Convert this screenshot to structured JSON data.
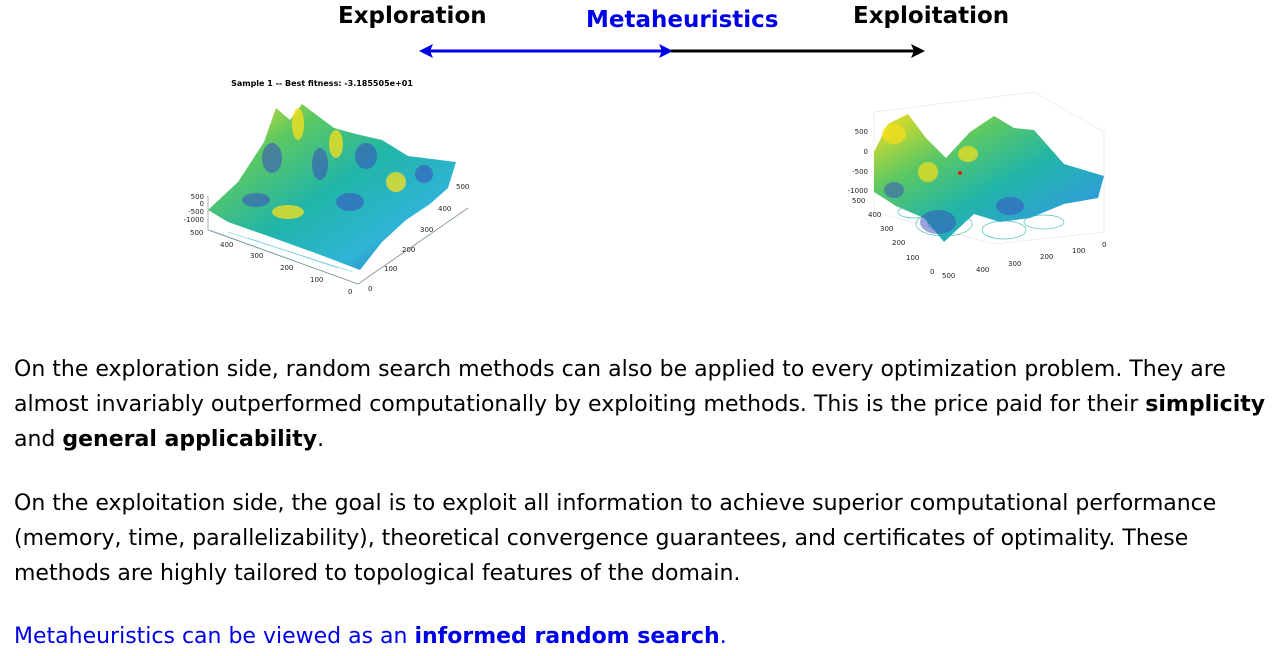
{
  "header": {
    "exploration_label": "Exploration",
    "metaheuristics_label": "Metaheuristics",
    "exploitation_label": "Exploitation"
  },
  "plot_left": {
    "title": "Sample 1 -- Best fitness: -3.185505e+01",
    "z_ticks": [
      "500",
      "0",
      "-500",
      "-1000"
    ],
    "y_ticks": [
      "500",
      "400",
      "300",
      "200",
      "100",
      "0"
    ],
    "x_ticks": [
      "500",
      "400",
      "300",
      "200",
      "100",
      "0"
    ]
  },
  "plot_right": {
    "z_ticks": [
      "500",
      "0",
      "-500",
      "-1000"
    ],
    "y_ticks": [
      "500",
      "400",
      "300",
      "200",
      "100",
      "0"
    ],
    "x_ticks": [
      "500",
      "400",
      "300",
      "200",
      "100",
      "0"
    ]
  },
  "paragraph1": {
    "text_a": "On the exploration side, random search methods can also be applied to every optimization problem. They are almost invariably outperformed computationally by exploiting methods. This is the price paid for their ",
    "bold1": "simplicity",
    "text_b": " and ",
    "bold2": "general applicability",
    "text_c": "."
  },
  "paragraph2": {
    "text": "On the exploitation side, the goal is to exploit all information to achieve superior computational performance (memory, time, parallelizability), theoretical convergence guarantees, and certificates of optimality. These methods are highly tailored to topological features of the domain."
  },
  "paragraph3": {
    "text_a": "Metaheuristics can be viewed as an ",
    "bold": "informed random search",
    "text_b": "."
  },
  "colors": {
    "accent_blue": "#0000e6",
    "surface_low": "#3b4cc0",
    "surface_mid": "#21b5a8",
    "surface_high": "#f9e01b"
  }
}
